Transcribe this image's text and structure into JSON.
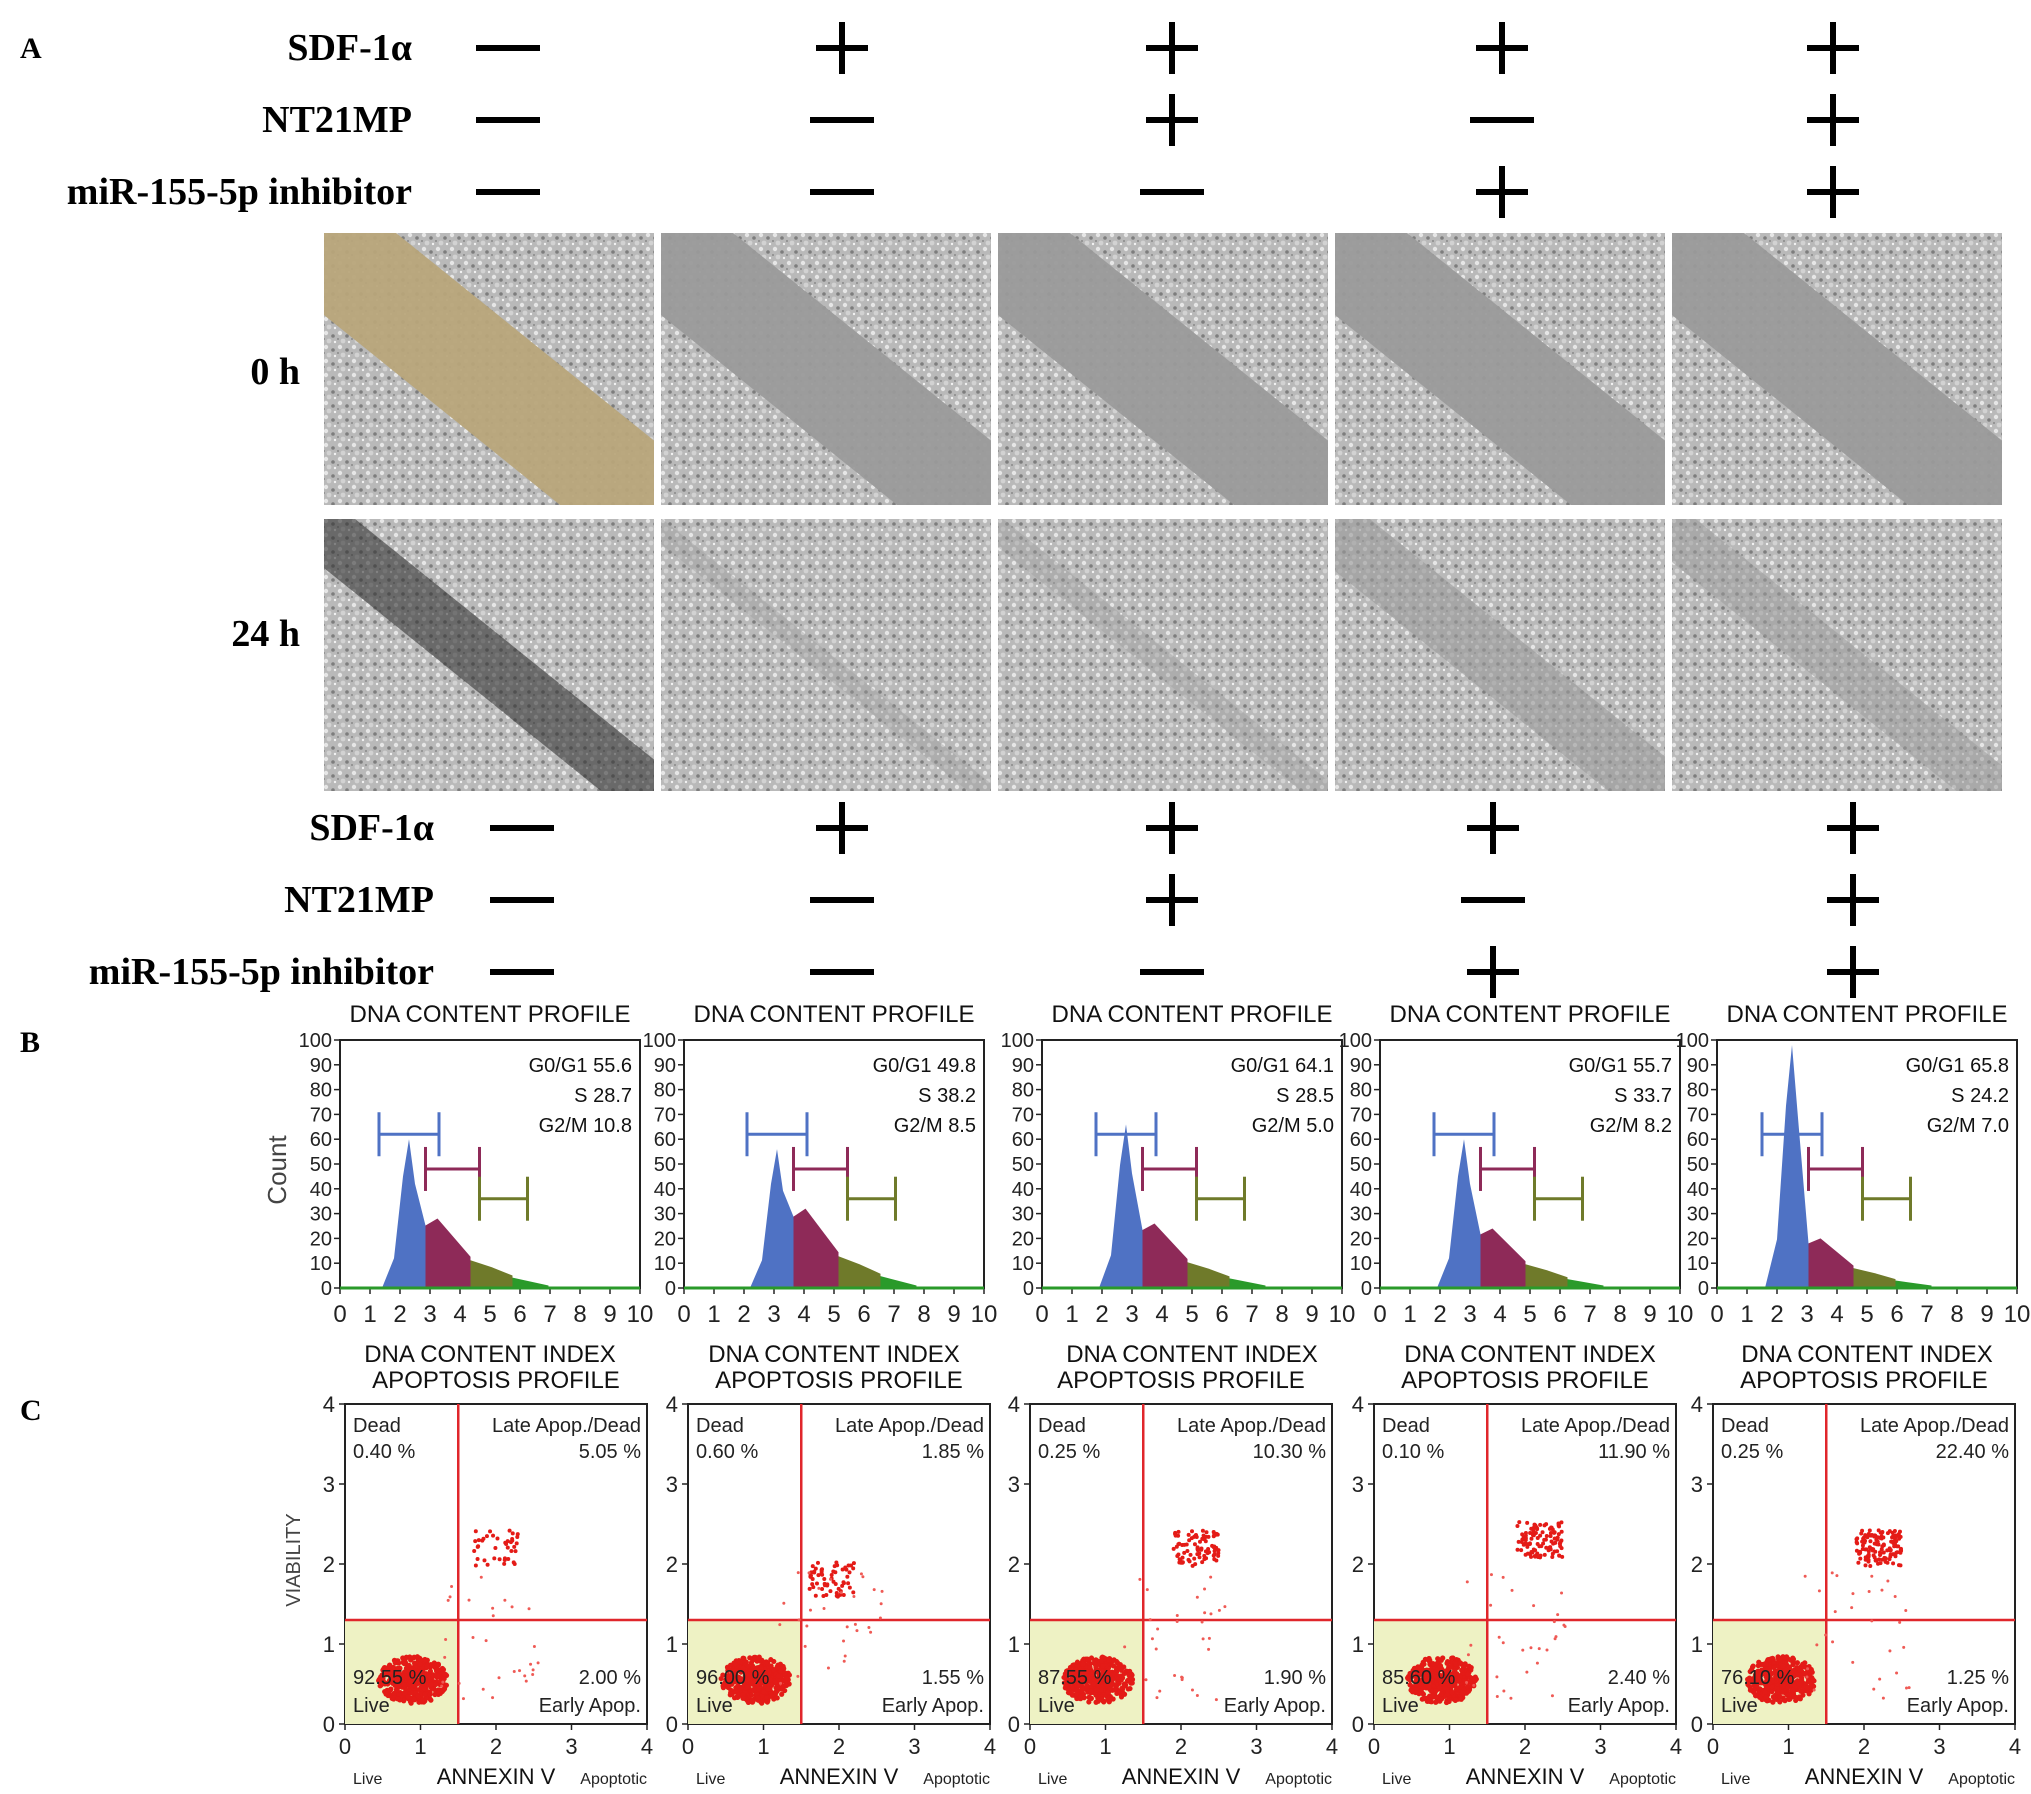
{
  "panel_labels": [
    "A",
    "B",
    "C"
  ],
  "conditions": {
    "rows": [
      "SDF-1α",
      "NT21MP",
      "miR-155-5p inhibitor"
    ],
    "symbols": [
      [
        "—",
        "+",
        "+",
        "+",
        "+"
      ],
      [
        "—",
        "—",
        "+",
        "—",
        "+"
      ],
      [
        "—",
        "—",
        "—",
        "+",
        "+"
      ]
    ]
  },
  "scratch_rows": [
    "0 h",
    "24 h"
  ],
  "scratch_gap_closure": [
    [
      0.0,
      0.0,
      0.0,
      0.0,
      0.0
    ],
    [
      0.55,
      0.95,
      0.9,
      0.5,
      0.65
    ]
  ],
  "dna_profiles": {
    "title": "DNA CONTENT PROFILE",
    "xlabel": "DNA CONTENT INDEX",
    "ylabel": "Count",
    "y_ticks": [
      "0",
      "10",
      "20",
      "30",
      "40",
      "50",
      "60",
      "70",
      "80",
      "90",
      "100"
    ],
    "x_ticks": [
      "0",
      "1",
      "2",
      "3",
      "4",
      "5",
      "6",
      "7",
      "8",
      "9",
      "10"
    ],
    "phase_colors": {
      "G0/G1": "#4f72c4",
      "S": "#8e2a58",
      "G2/M": "#6f7a2a",
      "tail": "#2a9a2a"
    },
    "panels": [
      {
        "phases": [
          "G0/G1 55.6",
          "S 28.7",
          "G2/M 10.8"
        ],
        "g1_peak": 2.3,
        "g1_height": 60,
        "s_height": 28
      },
      {
        "phases": [
          "G0/G1 49.8",
          "S 38.2",
          "G2/M 8.5"
        ],
        "g1_peak": 3.1,
        "g1_height": 56,
        "s_height": 32
      },
      {
        "phases": [
          "G0/G1 64.1",
          "S 28.5",
          "G2/M 5.0"
        ],
        "g1_peak": 2.8,
        "g1_height": 66,
        "s_height": 26
      },
      {
        "phases": [
          "G0/G1 55.7",
          "S 33.7",
          "G2/M 8.2"
        ],
        "g1_peak": 2.8,
        "g1_height": 60,
        "s_height": 24
      },
      {
        "phases": [
          "G0/G1 65.8",
          "S 24.2",
          "G2/M 7.0"
        ],
        "g1_peak": 2.5,
        "g1_height": 98,
        "s_height": 20
      }
    ]
  },
  "apoptosis_profiles": {
    "title": "APOPTOSIS PROFILE",
    "xlabel": "ANNEXIN V",
    "ylabel": "VIABILITY",
    "x_left": "Live",
    "x_right": "Apoptotic",
    "ticks": [
      "0",
      "1",
      "2",
      "3",
      "4"
    ],
    "quadrant_labels": {
      "dead": "Dead",
      "late": "Late Apop./Dead",
      "live": "Live",
      "early": "Early Apop."
    },
    "panels": [
      {
        "dead": "0.40 %",
        "late": "5.05 %",
        "live": "92.55 %",
        "early": "2.00 %",
        "late_center": [
          2.0,
          2.2
        ]
      },
      {
        "dead": "0.60 %",
        "late": "1.85 %",
        "live": "96.00 %",
        "early": "1.55 %",
        "late_center": [
          1.9,
          1.8
        ]
      },
      {
        "dead": "0.25 %",
        "late": "10.30 %",
        "live": "87.55 %",
        "early": "1.90 %",
        "late_center": [
          2.2,
          2.2
        ]
      },
      {
        "dead": "0.10 %",
        "late": "11.90 %",
        "live": "85.60 %",
        "early": "2.40 %",
        "late_center": [
          2.2,
          2.3
        ]
      },
      {
        "dead": "0.25 %",
        "late": "22.40 %",
        "live": "76.10 %",
        "early": "1.25 %",
        "late_center": [
          2.2,
          2.2
        ]
      }
    ]
  }
}
